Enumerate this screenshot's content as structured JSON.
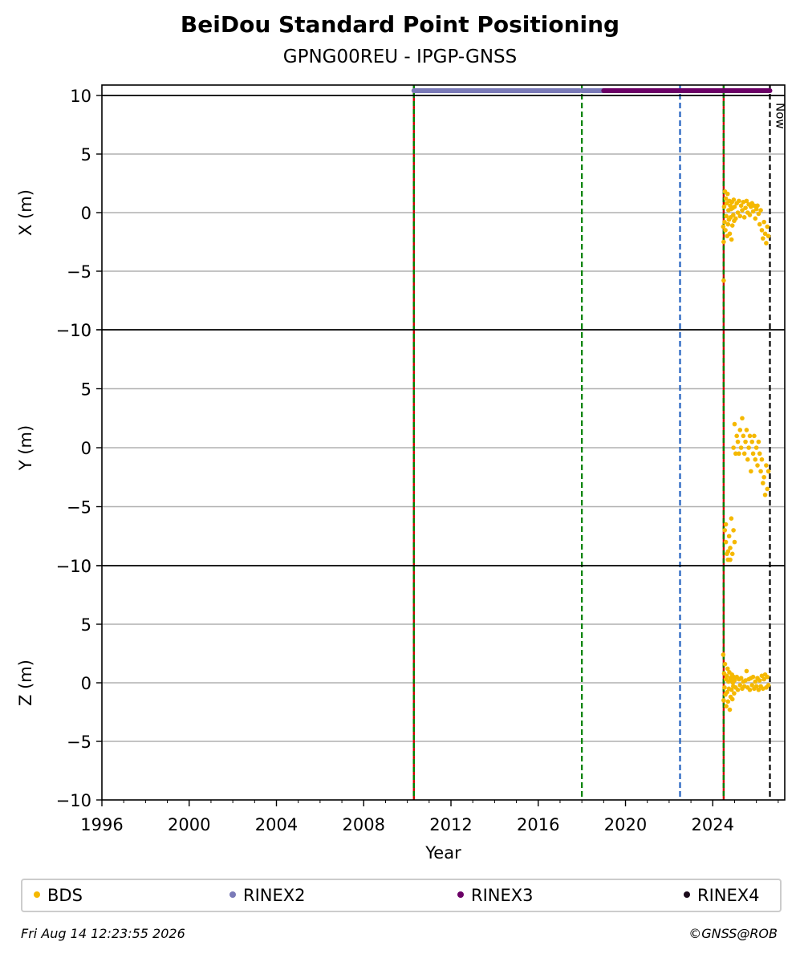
{
  "chart_data": {
    "type": "scatter",
    "title": "BeiDou Standard Point Positioning",
    "subtitle": "GPNG00REU - IPGP-GNSS",
    "xlabel": "Year",
    "xlim": [
      1996.0,
      2027.3
    ],
    "xticks": [
      1996,
      2000,
      2004,
      2008,
      2012,
      2016,
      2020,
      2024
    ],
    "xtick_labels": [
      "1996",
      "2000",
      "2004",
      "2008",
      "2012",
      "2016",
      "2020",
      "2024"
    ],
    "grid": "horizontal",
    "panels": [
      {
        "id": "x",
        "ylabel": "X (m)",
        "ylim": [
          -10,
          10
        ],
        "yticks": [
          10,
          5,
          0,
          -5,
          -10
        ],
        "ytick_labels": [
          "10",
          "5",
          "0",
          "−5",
          "−10"
        ]
      },
      {
        "id": "y",
        "ylabel": "Y (m)",
        "ylim": [
          -10,
          10
        ],
        "yticks": [
          10,
          5,
          0,
          -5,
          -10
        ],
        "ytick_labels": [
          "10",
          "5",
          "0",
          "−5",
          "−10"
        ]
      },
      {
        "id": "z",
        "ylabel": "Z (m)",
        "ylim": [
          -10,
          10
        ],
        "yticks": [
          10,
          5,
          0,
          -5,
          -10
        ],
        "ytick_labels": [
          "10",
          "5",
          "0",
          "−5",
          "−10"
        ]
      }
    ],
    "vertical_lines": [
      {
        "x": 2010.3,
        "style": "solid",
        "color": "#cc0000",
        "overlay_color": "#008000"
      },
      {
        "x": 2018.0,
        "style": "dashed",
        "color": "#008000"
      },
      {
        "x": 2022.5,
        "style": "dashed",
        "color": "#1f5fbf"
      },
      {
        "x": 2024.5,
        "style": "solid",
        "color": "#cc0000",
        "overlay_color": "#008000"
      },
      {
        "x": 2026.62,
        "style": "dashed",
        "color": "#000000",
        "label": "Now"
      }
    ],
    "rinex_bars": [
      {
        "name": "RINEX2",
        "color": "#7a7ab8",
        "segments": [
          [
            2010.3,
            2017.9
          ],
          [
            2018.0,
            2019.0
          ]
        ]
      },
      {
        "name": "RINEX3",
        "color": "#6b0066",
        "segments": [
          [
            2019.0,
            2026.62
          ]
        ]
      }
    ],
    "series": [
      {
        "name": "BDS",
        "color": "#f5b800",
        "panel": "x",
        "points": [
          [
            2024.48,
            -1.2
          ],
          [
            2024.5,
            -2.5
          ],
          [
            2024.52,
            0.5
          ],
          [
            2024.54,
            -0.8
          ],
          [
            2024.56,
            1.8
          ],
          [
            2024.58,
            -1.5
          ],
          [
            2024.6,
            1.2
          ],
          [
            2024.62,
            -0.3
          ],
          [
            2024.64,
            0.8
          ],
          [
            2024.66,
            -2.0
          ],
          [
            2024.68,
            1.6
          ],
          [
            2024.7,
            -1.0
          ],
          [
            2024.72,
            0.2
          ],
          [
            2024.74,
            -0.6
          ],
          [
            2024.76,
            1.0
          ],
          [
            2024.78,
            -1.8
          ],
          [
            2024.8,
            0.6
          ],
          [
            2024.82,
            -0.4
          ],
          [
            2024.84,
            0.3
          ],
          [
            2024.86,
            -2.3
          ],
          [
            2024.88,
            0.9
          ],
          [
            2024.9,
            -1.1
          ],
          [
            2024.92,
            0.4
          ],
          [
            2024.94,
            -0.2
          ],
          [
            2024.96,
            1.1
          ],
          [
            2024.98,
            -0.7
          ],
          [
            2025.0,
            0.5
          ],
          [
            2025.05,
            -0.5
          ],
          [
            2025.1,
            0.8
          ],
          [
            2025.15,
            0.0
          ],
          [
            2025.2,
            1.0
          ],
          [
            2025.25,
            -0.3
          ],
          [
            2025.3,
            0.6
          ],
          [
            2025.35,
            0.2
          ],
          [
            2025.4,
            0.9
          ],
          [
            2025.45,
            -0.4
          ],
          [
            2025.5,
            0.4
          ],
          [
            2025.55,
            1.0
          ],
          [
            2025.6,
            0.0
          ],
          [
            2025.65,
            0.7
          ],
          [
            2025.7,
            -0.2
          ],
          [
            2025.75,
            0.5
          ],
          [
            2025.8,
            0.8
          ],
          [
            2025.85,
            0.1
          ],
          [
            2025.9,
            0.6
          ],
          [
            2025.95,
            -0.5
          ],
          [
            2026.0,
            0.3
          ],
          [
            2026.05,
            0.6
          ],
          [
            2026.1,
            -0.1
          ],
          [
            2026.15,
            -1.0
          ],
          [
            2026.2,
            0.2
          ],
          [
            2026.25,
            -1.5
          ],
          [
            2026.3,
            -2.2
          ],
          [
            2026.35,
            -0.8
          ],
          [
            2026.4,
            -1.8
          ],
          [
            2026.45,
            -2.6
          ],
          [
            2026.5,
            -1.2
          ],
          [
            2026.55,
            -2.0
          ],
          [
            2024.5,
            -5.8
          ]
        ]
      },
      {
        "name": "BDS",
        "color": "#f5b800",
        "panel": "y",
        "points": [
          [
            2024.55,
            -7.0
          ],
          [
            2024.6,
            -8.0
          ],
          [
            2024.65,
            -9.0
          ],
          [
            2024.7,
            -9.5
          ],
          [
            2024.75,
            -7.5
          ],
          [
            2024.8,
            -8.5
          ],
          [
            2024.85,
            -6.0
          ],
          [
            2024.9,
            -9.0
          ],
          [
            2024.95,
            -7.0
          ],
          [
            2025.0,
            -8.0
          ],
          [
            2024.6,
            -6.5
          ],
          [
            2024.7,
            -8.8
          ],
          [
            2024.8,
            -9.5
          ],
          [
            2024.95,
            0.0
          ],
          [
            2025.0,
            2.0
          ],
          [
            2025.05,
            -0.5
          ],
          [
            2025.1,
            1.0
          ],
          [
            2025.15,
            0.5
          ],
          [
            2025.2,
            -0.5
          ],
          [
            2025.25,
            1.5
          ],
          [
            2025.3,
            0.0
          ],
          [
            2025.35,
            2.5
          ],
          [
            2025.4,
            1.0
          ],
          [
            2025.45,
            -0.5
          ],
          [
            2025.5,
            0.5
          ],
          [
            2025.55,
            1.5
          ],
          [
            2025.6,
            -1.0
          ],
          [
            2025.65,
            0.0
          ],
          [
            2025.7,
            1.0
          ],
          [
            2025.75,
            -2.0
          ],
          [
            2025.8,
            0.5
          ],
          [
            2025.85,
            -0.5
          ],
          [
            2025.9,
            1.0
          ],
          [
            2025.95,
            -1.0
          ],
          [
            2026.0,
            0.0
          ],
          [
            2026.05,
            -1.5
          ],
          [
            2026.1,
            0.5
          ],
          [
            2026.15,
            -0.5
          ],
          [
            2026.2,
            -2.0
          ],
          [
            2026.25,
            -1.0
          ],
          [
            2026.3,
            -3.0
          ],
          [
            2026.35,
            -2.5
          ],
          [
            2026.4,
            -4.0
          ],
          [
            2026.45,
            -1.5
          ],
          [
            2026.5,
            -3.5
          ],
          [
            2026.55,
            -2.0
          ]
        ]
      },
      {
        "name": "BDS",
        "color": "#f5b800",
        "panel": "z",
        "points": [
          [
            2024.48,
            2.4
          ],
          [
            2024.5,
            -1.5
          ],
          [
            2024.52,
            0.8
          ],
          [
            2024.54,
            -0.4
          ],
          [
            2024.56,
            1.6
          ],
          [
            2024.58,
            -1.0
          ],
          [
            2024.6,
            0.3
          ],
          [
            2024.62,
            -2.0
          ],
          [
            2024.64,
            0.6
          ],
          [
            2024.66,
            -0.8
          ],
          [
            2024.68,
            1.2
          ],
          [
            2024.7,
            -1.6
          ],
          [
            2024.72,
            0.1
          ],
          [
            2024.74,
            -0.5
          ],
          [
            2024.76,
            0.9
          ],
          [
            2024.78,
            -2.3
          ],
          [
            2024.8,
            0.4
          ],
          [
            2024.82,
            -1.2
          ],
          [
            2024.84,
            0.2
          ],
          [
            2024.86,
            -0.6
          ],
          [
            2024.88,
            0.7
          ],
          [
            2024.9,
            -1.4
          ],
          [
            2024.92,
            0.0
          ],
          [
            2024.94,
            -0.3
          ],
          [
            2024.96,
            0.5
          ],
          [
            2024.98,
            -0.9
          ],
          [
            2025.0,
            0.2
          ],
          [
            2025.05,
            -0.4
          ],
          [
            2025.1,
            0.5
          ],
          [
            2025.15,
            -0.6
          ],
          [
            2025.2,
            0.3
          ],
          [
            2025.25,
            -0.2
          ],
          [
            2025.3,
            0.4
          ],
          [
            2025.35,
            -0.5
          ],
          [
            2025.4,
            0.1
          ],
          [
            2025.45,
            -0.3
          ],
          [
            2025.5,
            0.2
          ],
          [
            2025.55,
            1.0
          ],
          [
            2025.6,
            -0.4
          ],
          [
            2025.65,
            0.3
          ],
          [
            2025.7,
            -0.6
          ],
          [
            2025.75,
            0.4
          ],
          [
            2025.8,
            -0.2
          ],
          [
            2025.85,
            0.5
          ],
          [
            2025.9,
            -0.5
          ],
          [
            2025.95,
            0.1
          ],
          [
            2026.0,
            -0.3
          ],
          [
            2026.05,
            0.4
          ],
          [
            2026.1,
            -0.6
          ],
          [
            2026.15,
            0.2
          ],
          [
            2026.2,
            -0.3
          ],
          [
            2026.25,
            0.6
          ],
          [
            2026.3,
            -0.5
          ],
          [
            2026.35,
            0.3
          ],
          [
            2026.4,
            0.7
          ],
          [
            2026.45,
            -0.4
          ],
          [
            2026.5,
            0.5
          ],
          [
            2026.55,
            -0.2
          ]
        ]
      }
    ]
  },
  "legend": {
    "items": [
      {
        "label": "BDS",
        "color": "#f5b800"
      },
      {
        "label": "RINEX2",
        "color": "#7a7ab8"
      },
      {
        "label": "RINEX3",
        "color": "#6b0066"
      },
      {
        "label": "RINEX4",
        "color": "#1a0a1a"
      }
    ]
  },
  "footer": {
    "timestamp": "Fri Aug 14 12:23:55 2026",
    "credit": "©GNSS@ROB"
  }
}
